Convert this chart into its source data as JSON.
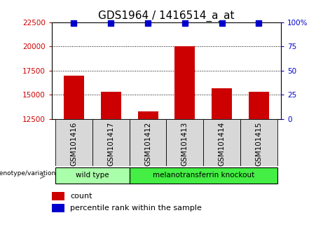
{
  "title": "GDS1964 / 1416514_a_at",
  "samples": [
    "GSM101416",
    "GSM101417",
    "GSM101412",
    "GSM101413",
    "GSM101414",
    "GSM101415"
  ],
  "counts": [
    17000,
    15300,
    13300,
    20000,
    15700,
    15300
  ],
  "bar_color": "#cc0000",
  "dot_color": "#0000cc",
  "ylim_left": [
    12500,
    22500
  ],
  "ylim_right": [
    0,
    100
  ],
  "yticks_left": [
    12500,
    15000,
    17500,
    20000,
    22500
  ],
  "yticks_right": [
    0,
    25,
    50,
    75,
    100
  ],
  "groups": [
    {
      "label": "wild type",
      "indices": [
        0,
        1
      ],
      "color": "#aaffaa"
    },
    {
      "label": "melanotransferrin knockout",
      "indices": [
        2,
        3,
        4,
        5
      ],
      "color": "#44ee44"
    }
  ],
  "group_label_prefix": "genotype/variation",
  "legend_count_label": "count",
  "legend_pct_label": "percentile rank within the sample",
  "title_fontsize": 11,
  "tick_label_fontsize": 7.5,
  "background_color": "#ffffff",
  "bar_color_left_tick": "#cc0000",
  "right_tick_color": "#0000cc",
  "bar_width": 0.55,
  "dot_size": 55,
  "box_bg_color": "#d8d8d8"
}
